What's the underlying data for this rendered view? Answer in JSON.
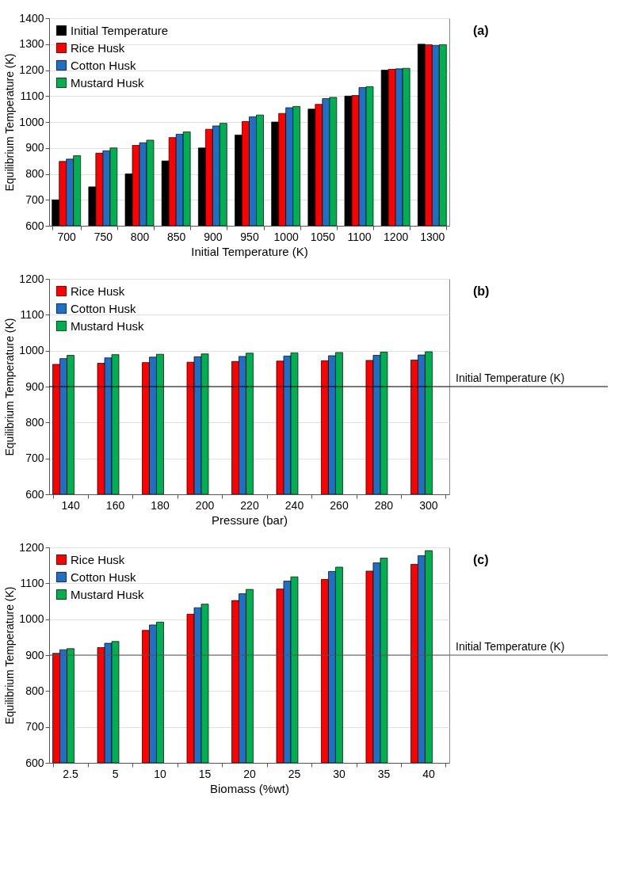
{
  "chart_data": [
    {
      "type": "bar",
      "xlabel": "Initial Temperature (K)",
      "ylabel": "Equilibrium Temperature (K)",
      "annotations": [
        "(a)"
      ],
      "categories": [
        "700",
        "750",
        "800",
        "850",
        "900",
        "950",
        "1000",
        "1050",
        "1100",
        "1200",
        "1300"
      ],
      "series": [
        {
          "name": "Initial Temperature",
          "color": "#000000",
          "values": [
            700,
            750,
            800,
            850,
            900,
            950,
            1000,
            1050,
            1100,
            1200,
            1300
          ]
        },
        {
          "name": "Rice Husk",
          "color": "#ff0000",
          "values": [
            848,
            880,
            910,
            940,
            972,
            1002,
            1033,
            1068,
            1102,
            1203,
            1298
          ]
        },
        {
          "name": "Cotton Husk",
          "color": "#1f6fc5",
          "values": [
            857,
            889,
            920,
            953,
            985,
            1020,
            1055,
            1090,
            1133,
            1205,
            1295
          ]
        },
        {
          "name": "Mustard Husk",
          "color": "#00b050",
          "values": [
            870,
            900,
            930,
            962,
            995,
            1027,
            1060,
            1095,
            1136,
            1207,
            1298
          ]
        }
      ],
      "ylim": [
        600,
        1400
      ],
      "yticks": [
        600,
        700,
        800,
        900,
        1000,
        1100,
        1200,
        1300,
        1400
      ],
      "grid": "y",
      "legend": "top left"
    },
    {
      "type": "bar",
      "xlabel": "Pressure (bar)",
      "ylabel": "Equilibrium Temperature (K)",
      "annotations": [
        "(b)"
      ],
      "categories": [
        "140",
        "160",
        "180",
        "200",
        "220",
        "240",
        "260",
        "280",
        "300"
      ],
      "series": [
        {
          "name": "Rice Husk",
          "color": "#ff0000",
          "values": [
            962,
            965,
            967,
            968,
            970,
            971,
            972,
            973,
            974
          ]
        },
        {
          "name": "Cotton Husk",
          "color": "#1f6fc5",
          "values": [
            978,
            980,
            982,
            983,
            984,
            985,
            986,
            987,
            988
          ]
        },
        {
          "name": "Mustard Husk",
          "color": "#00b050",
          "values": [
            987,
            989,
            990,
            991,
            993,
            994,
            995,
            996,
            997
          ]
        }
      ],
      "ylim": [
        600,
        1200
      ],
      "yticks": [
        600,
        700,
        800,
        900,
        1000,
        1100,
        1200
      ],
      "grid": "y",
      "legend": "top left",
      "ref_lines": [
        {
          "axis": "y",
          "value": 900,
          "label": "Initial Temperature (K)",
          "color": "#000000"
        }
      ]
    },
    {
      "type": "bar",
      "xlabel": "Biomass (%wt)",
      "ylabel": "Equilibrium Temperature (K)",
      "annotations": [
        "(c)"
      ],
      "categories": [
        "2.5",
        "5",
        "10",
        "15",
        "20",
        "25",
        "30",
        "35",
        "40"
      ],
      "series": [
        {
          "name": "Rice Husk",
          "color": "#ff0000",
          "values": [
            905,
            921,
            969,
            1014,
            1052,
            1084,
            1111,
            1134,
            1153
          ]
        },
        {
          "name": "Cotton Husk",
          "color": "#1f6fc5",
          "values": [
            915,
            933,
            984,
            1032,
            1071,
            1106,
            1133,
            1157,
            1177
          ]
        },
        {
          "name": "Mustard Husk",
          "color": "#00b050",
          "values": [
            918,
            938,
            992,
            1042,
            1083,
            1118,
            1145,
            1170,
            1191
          ]
        }
      ],
      "ylim": [
        600,
        1200
      ],
      "yticks": [
        600,
        700,
        800,
        900,
        1000,
        1100,
        1200
      ],
      "grid": "y",
      "legend": "top left",
      "ref_lines": [
        {
          "axis": "y",
          "value": 900,
          "label": "Initial Temperature (K)",
          "color": "#555555"
        }
      ]
    }
  ]
}
